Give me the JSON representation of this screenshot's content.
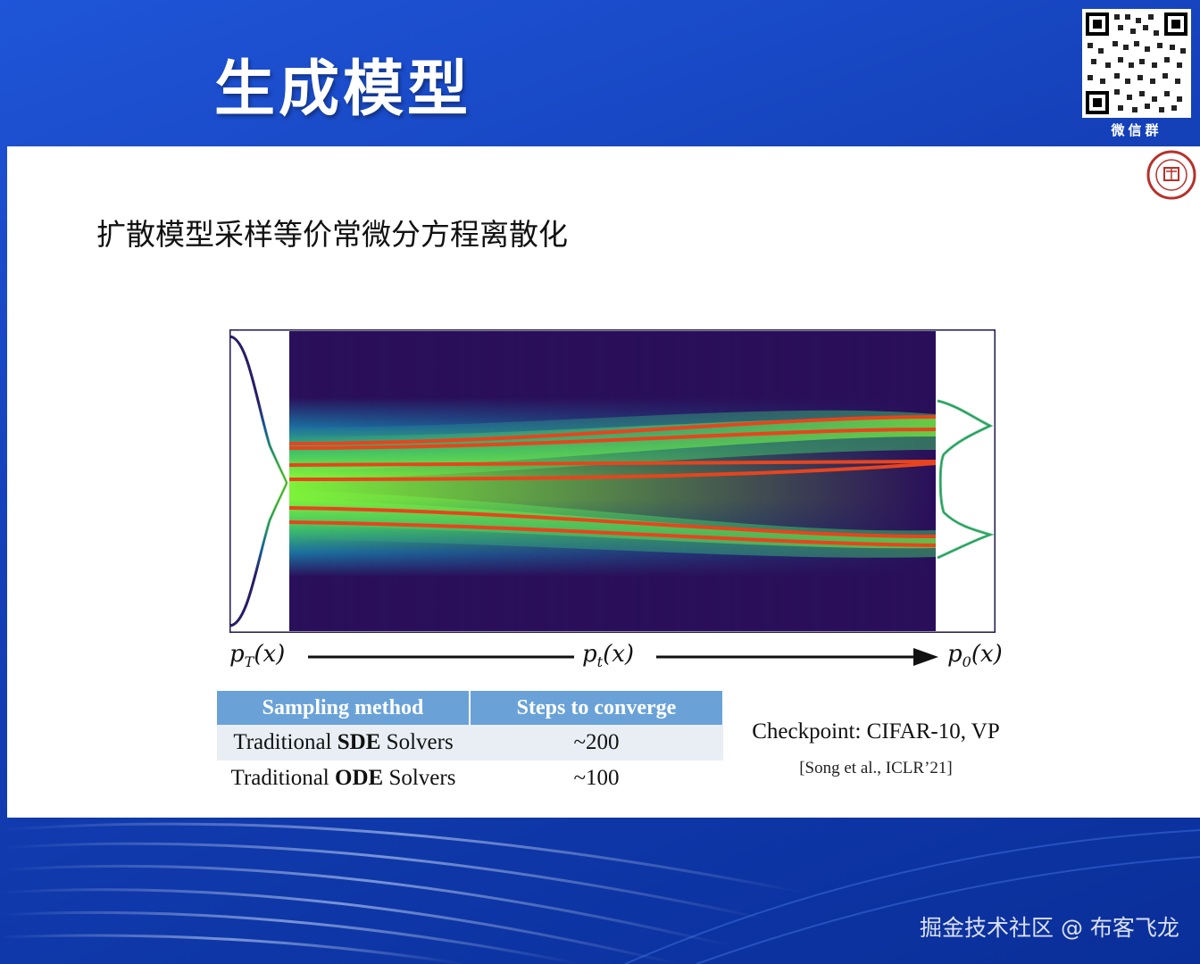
{
  "header": {
    "title": "生成模型"
  },
  "qr": {
    "label": "微信群"
  },
  "slide": {
    "subtitle": "扩散模型采样等价常微分方程离散化",
    "figure": {
      "labels": {
        "left_var": "p",
        "left_sub": "T",
        "left_arg": "(x)",
        "mid_var": "p",
        "mid_sub": "t",
        "mid_arg": "(x)",
        "right_var": "p",
        "right_sub": "0",
        "right_arg": "(x)"
      },
      "colors": {
        "background": "#2a0f5a",
        "density": "#7ef23a",
        "trajectory": "#e8441e",
        "frame": "#1d1a4a"
      }
    },
    "table": {
      "headers": [
        "Sampling method",
        "Steps to converge"
      ],
      "rows": [
        {
          "method_pre": "Traditional ",
          "method_bold": "SDE",
          "method_post": " Solvers",
          "steps": "~200"
        },
        {
          "method_pre": "Traditional ",
          "method_bold": "ODE",
          "method_post": " Solvers",
          "steps": "~100"
        }
      ]
    },
    "checkpoint": "Checkpoint: CIFAR-10, VP",
    "citation": "[Song et al., ICLR’21]"
  },
  "watermark": "掘金技术社区 @ 布客飞龙"
}
